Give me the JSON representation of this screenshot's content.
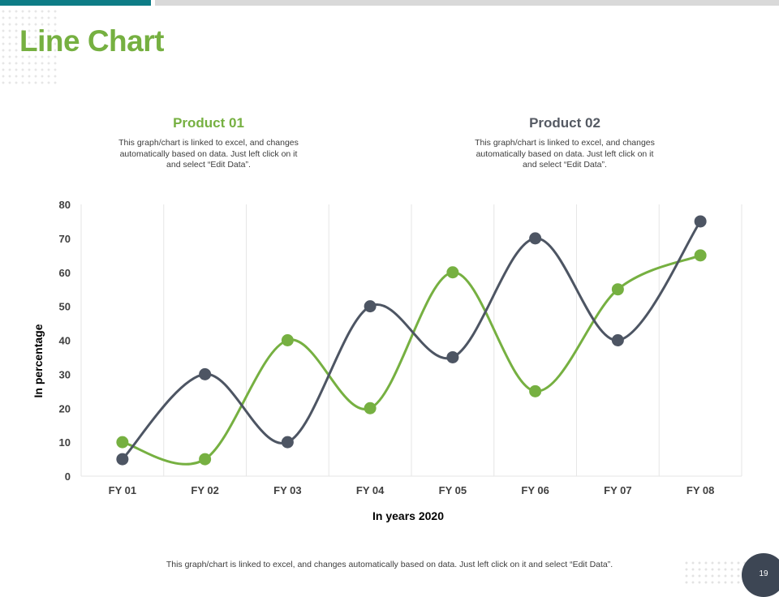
{
  "page": {
    "title": "Line Chart",
    "footer_note": "This graph/chart is linked to excel, and changes automatically based on data. Just left click on it and select “Edit Data”.",
    "page_number": "19"
  },
  "legend": [
    {
      "title": "Product 01",
      "description": "This graph/chart is linked to excel, and changes automatically based on data. Just left click on it and select “Edit Data”."
    },
    {
      "title": "Product 02",
      "description": "This graph/chart is linked to excel, and changes automatically based on data. Just left click on it and select “Edit Data”."
    }
  ],
  "colors": {
    "accent_green": "#76b041",
    "series_dark": "#4d5563",
    "top_bar_teal": "#0e7c86",
    "page_badge": "#3d4654"
  },
  "chart_data": {
    "type": "line",
    "smooth": true,
    "categories": [
      "FY 01",
      "FY 02",
      "FY 03",
      "FY 04",
      "FY 05",
      "FY 06",
      "FY 07",
      "FY 08"
    ],
    "series": [
      {
        "name": "Product 01",
        "color": "#76b041",
        "values": [
          10,
          5,
          40,
          20,
          60,
          25,
          55,
          65
        ]
      },
      {
        "name": "Product 02",
        "color": "#4d5563",
        "values": [
          5,
          30,
          10,
          50,
          35,
          70,
          40,
          75
        ]
      }
    ],
    "xlabel": "In years 2020",
    "ylabel": "In percentage",
    "ylim": [
      0,
      80
    ],
    "yticks": [
      0,
      10,
      20,
      30,
      40,
      50,
      60,
      70,
      80
    ],
    "grid": "vertical",
    "legend_position": "top"
  }
}
